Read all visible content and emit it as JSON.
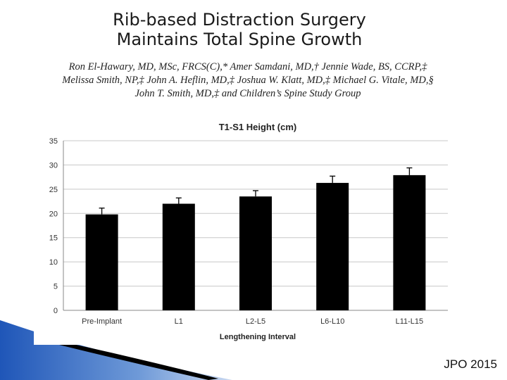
{
  "slide": {
    "title_line1": "Rib-based Distraction Surgery",
    "title_line2": "Maintains Total Spine Growth",
    "authors_line1": "Ron El-Hawary, MD, MSc, FRCS(C),* Amer Samdani, MD,† Jennie Wade, BS, CCRP,‡",
    "authors_line2": "Melissa Smith, NP,‡ John A. Heflin, MD,‡ Joshua W. Klatt, MD,‡ Michael G. Vitale, MD,§",
    "authors_line3": "John T. Smith, MD,‡ and Children’s Spine Study Group",
    "citation": "JPO 2015"
  },
  "chart_data": {
    "type": "bar",
    "title": "T1-S1 Height (cm)",
    "xlabel": "Lengthening Interval",
    "ylabel": "",
    "ylim": [
      0,
      35
    ],
    "yticks": [
      0,
      5,
      10,
      15,
      20,
      25,
      30,
      35
    ],
    "grid": true,
    "categories": [
      "Pre-Implant",
      "L1",
      "L2-L5",
      "L6-L10",
      "L11-L15"
    ],
    "values": [
      19.8,
      22.0,
      23.5,
      26.3,
      27.9
    ],
    "errors": [
      1.3,
      1.2,
      1.2,
      1.4,
      1.5
    ],
    "bar_color": "#000000"
  }
}
